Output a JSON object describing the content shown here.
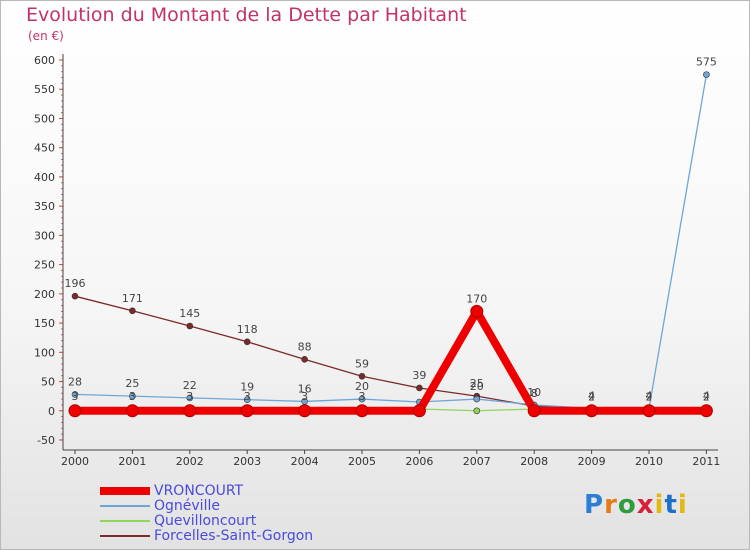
{
  "header": {
    "title": "Evolution du Montant de la Dette par Habitant",
    "subtitle": "(en €)"
  },
  "logo": {
    "text": "Proxiti"
  },
  "chart_data": {
    "type": "line",
    "title": "Evolution du Montant de la Dette par Habitant",
    "subtitle": "(en €)",
    "xlabel": "",
    "ylabel": "",
    "ylim": [
      -50,
      600
    ],
    "yticks": [
      -50,
      0,
      50,
      100,
      150,
      200,
      250,
      300,
      350,
      400,
      450,
      500,
      550,
      600
    ],
    "categories": [
      "2000",
      "2001",
      "2002",
      "2003",
      "2004",
      "2005",
      "2006",
      "2007",
      "2008",
      "2009",
      "2010",
      "2011"
    ],
    "series": [
      {
        "name": "VRONCOURT",
        "color": "#ee0000",
        "values": [
          0,
          0,
          0,
          0,
          0,
          0,
          0,
          170,
          0,
          0,
          0,
          0
        ],
        "labels": [
          "",
          "",
          "",
          "",
          "",
          "",
          "",
          "170",
          "",
          "",
          "",
          ""
        ]
      },
      {
        "name": "Ognéville",
        "color": "#6fa6d6",
        "values": [
          28,
          25,
          22,
          19,
          16,
          20,
          15,
          20,
          10,
          4,
          4,
          575
        ],
        "labels": [
          "28",
          "25",
          "22",
          "19",
          "16",
          "20",
          "",
          "20",
          "10",
          "4",
          "4",
          "575"
        ]
      },
      {
        "name": "Quevilloncourt",
        "color": "#8fd65a",
        "values": [
          3,
          3,
          3,
          3,
          3,
          3,
          3,
          0,
          3,
          2,
          2,
          2
        ],
        "labels": [
          "3",
          "3",
          "3",
          "3",
          "3",
          "3",
          "",
          "",
          "",
          "2",
          "2",
          "2"
        ]
      },
      {
        "name": "Forcelles-Saint-Gorgon",
        "color": "#7a2a2a",
        "values": [
          196,
          171,
          145,
          118,
          88,
          59,
          39,
          25,
          8,
          4,
          4,
          4
        ],
        "labels": [
          "196",
          "171",
          "145",
          "118",
          "88",
          "59",
          "39",
          "25",
          "8",
          "4",
          "4",
          "4"
        ]
      }
    ],
    "legend_position": "bottom-left"
  }
}
